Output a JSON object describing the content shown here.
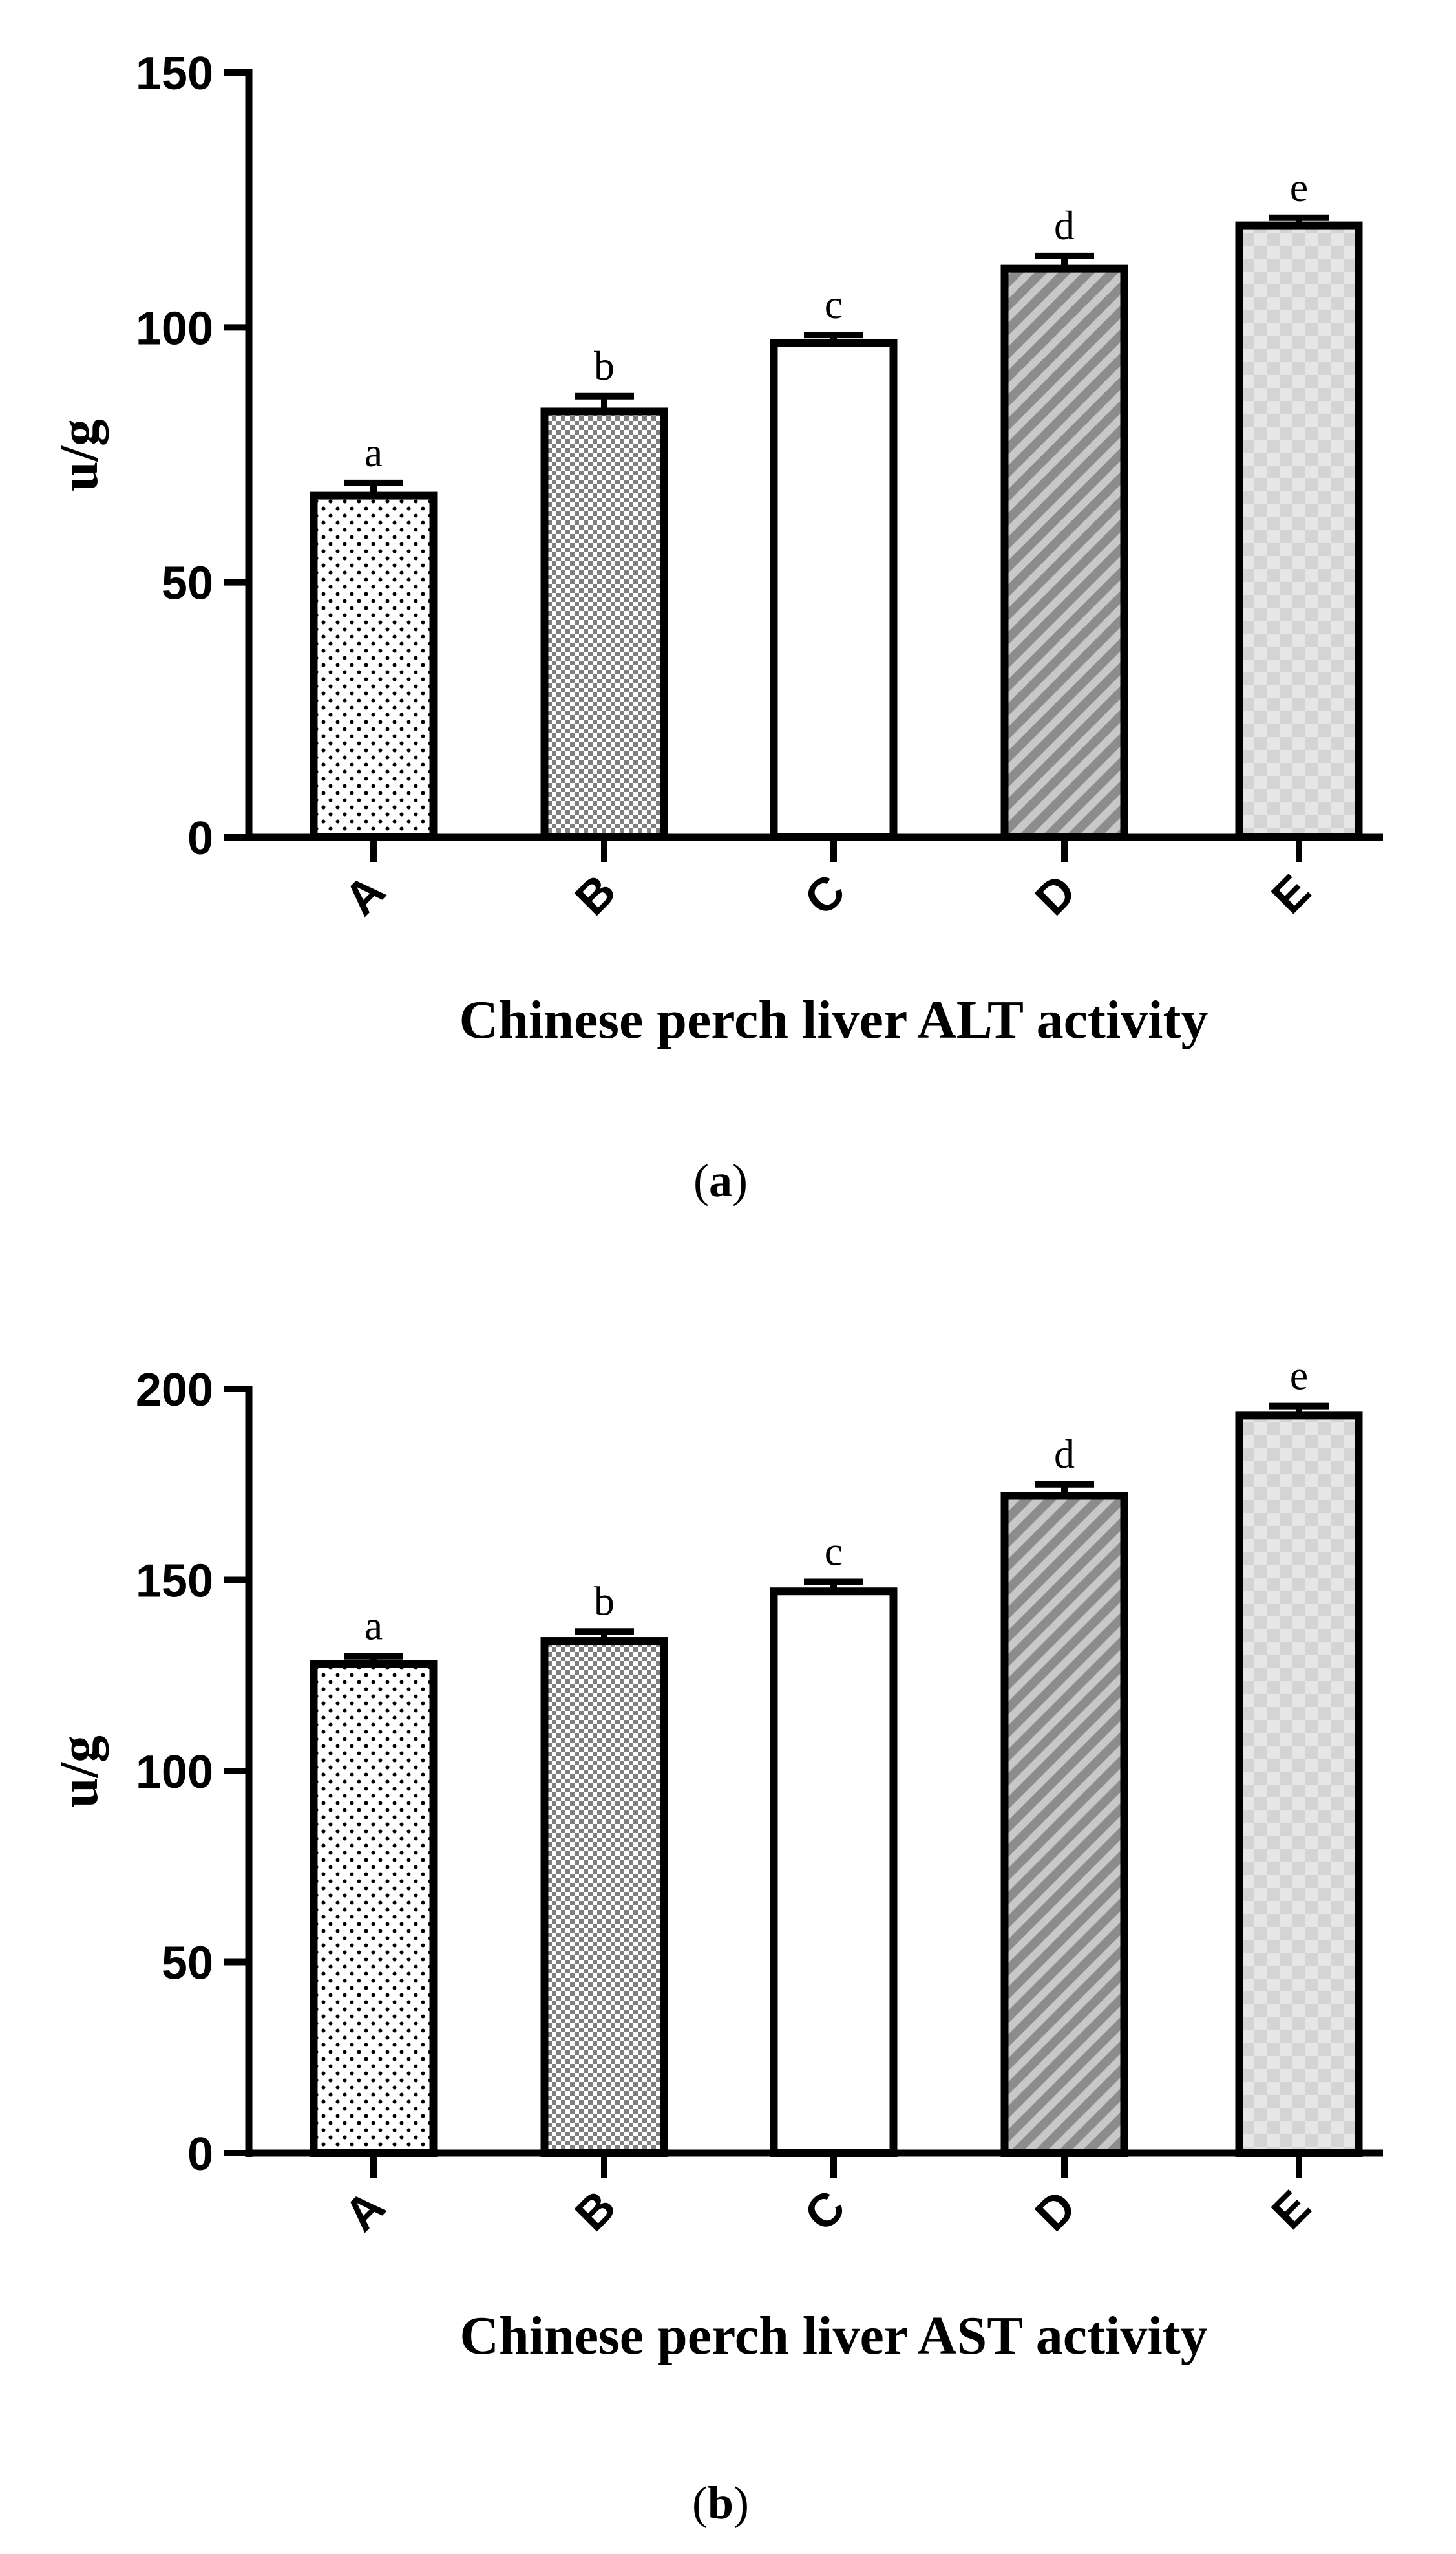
{
  "chart_data": [
    {
      "type": "bar",
      "panel": "a",
      "caption": "(a)",
      "caption_letter": "a",
      "ylabel": "u/g",
      "xlabel": "Chinese perch liver ALT activity",
      "ylim": [
        0,
        150
      ],
      "yticks": [
        0,
        50,
        100,
        150
      ],
      "categories": [
        "A",
        "B",
        "C",
        "D",
        "E"
      ],
      "values": [
        67,
        83.5,
        97,
        111.5,
        120
      ],
      "errors": [
        2.5,
        3,
        1.5,
        2.5,
        1.5
      ],
      "significance": [
        "a",
        "b",
        "c",
        "d",
        "e"
      ],
      "patterns": [
        "dots",
        "checker",
        "none",
        "diagonal",
        "light-checker"
      ],
      "grid": false
    },
    {
      "type": "bar",
      "panel": "b",
      "caption": "(b)",
      "caption_letter": "b",
      "ylabel": "u/g",
      "xlabel": "Chinese perch liver AST activity",
      "ylim": [
        0,
        200
      ],
      "yticks": [
        0,
        50,
        100,
        150,
        200
      ],
      "categories": [
        "A",
        "B",
        "C",
        "D",
        "E"
      ],
      "values": [
        128,
        134,
        147,
        172,
        193
      ],
      "errors": [
        2,
        2.5,
        2.5,
        3,
        2.5
      ],
      "significance": [
        "a",
        "b",
        "c",
        "d",
        "e"
      ],
      "patterns": [
        "dots",
        "checker",
        "none",
        "diagonal",
        "light-checker"
      ],
      "grid": false
    }
  ],
  "colors": {
    "axis": "#000000",
    "bar_stroke": "#000000",
    "dots_fill": "#ffffff",
    "checker_dark": "#7f7f7f",
    "checker_light": "#ffffff",
    "diagonal_dark": "#8c8c8c",
    "diagonal_light": "#c8c8c8",
    "light_checker_a": "#d8d8d8",
    "light_checker_b": "#e6e6e6"
  }
}
